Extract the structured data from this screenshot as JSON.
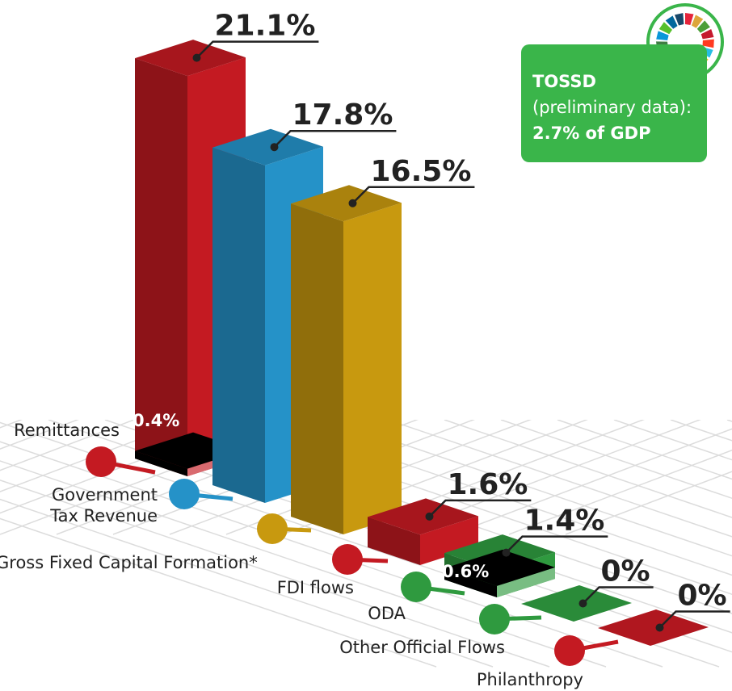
{
  "chart_data": {
    "type": "bar3d",
    "categories": [
      "Remittances",
      "Government Tax Revenue",
      "Gross Fixed Capital Formation*",
      "FDI flows",
      "ODA",
      "Other Official Flows",
      "Philanthropy"
    ],
    "values": [
      21.1,
      17.8,
      16.5,
      1.6,
      1.4,
      0,
      0
    ],
    "value_labels": [
      "21.1%",
      "17.8%",
      "16.5%",
      "1.6%",
      "1.4%",
      "0%",
      "0%"
    ],
    "inner_values": [
      0.4,
      null,
      null,
      null,
      0.6,
      null,
      null
    ],
    "inner_value_labels": [
      "0.4%",
      null,
      null,
      null,
      "0.6%",
      null,
      null
    ],
    "colors": [
      "#c41a22",
      "#2592c8",
      "#c8990f",
      "#c41a22",
      "#2f9a3f",
      "#2f9a3f",
      "#c41a22"
    ],
    "annotation": {
      "title": "TOSSD",
      "subtitle": "(preliminary data):",
      "value_label": "2.7% of GDP"
    }
  }
}
